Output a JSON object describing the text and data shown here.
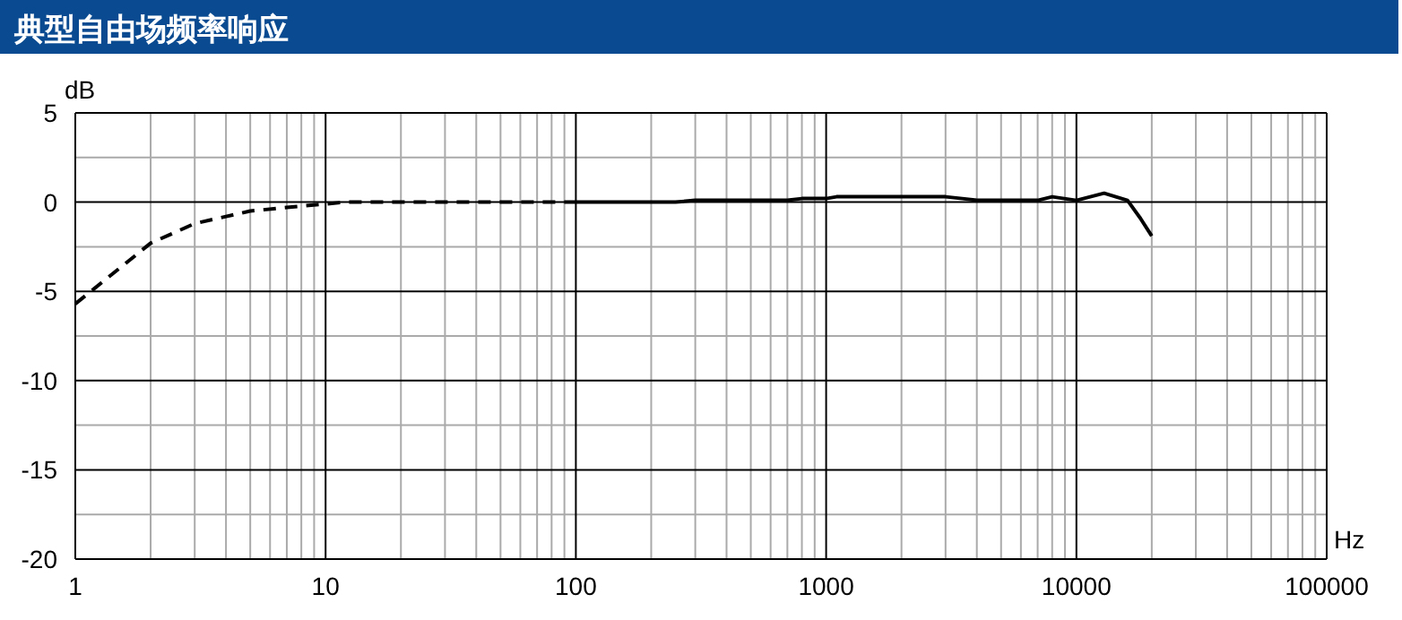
{
  "chart_data": {
    "type": "line",
    "title": "典型自由场频率响应",
    "xlabel": "Hz",
    "ylabel": "dB",
    "log": "x",
    "grid": true,
    "xlim": [
      1,
      100000
    ],
    "xticks": [
      1,
      10,
      100,
      1000,
      10000,
      100000
    ],
    "ylim": [
      -20,
      5
    ],
    "yticks": [
      -20,
      -15,
      -10,
      -5,
      0,
      5
    ],
    "series": [
      {
        "color": "#000000",
        "line_style": "dashed",
        "x": [
          1,
          2,
          3,
          5,
          7,
          10,
          12,
          20,
          50,
          100
        ],
        "values": [
          -5.7,
          -2.3,
          -1.2,
          -0.5,
          -0.3,
          -0.1,
          0,
          0,
          0,
          0
        ]
      },
      {
        "color": "#000000",
        "line_style": "solid",
        "x": [
          100,
          250,
          300,
          700,
          800,
          1000,
          1100,
          3000,
          3500,
          4000,
          7000,
          8000,
          10000,
          12900,
          16000,
          18000,
          20000
        ],
        "values": [
          0,
          0,
          0.1,
          0.1,
          0.2,
          0.2,
          0.3,
          0.3,
          0.2,
          0.1,
          0.1,
          0.3,
          0.1,
          0.5,
          0.1,
          -0.9,
          -1.9
        ]
      }
    ]
  }
}
